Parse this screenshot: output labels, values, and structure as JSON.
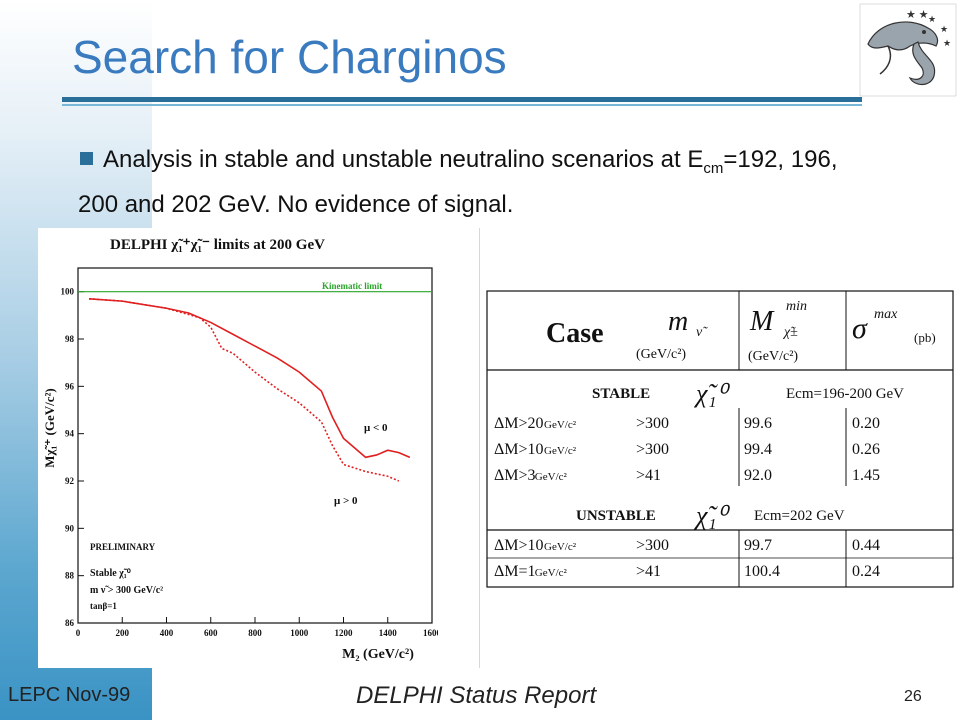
{
  "slide": {
    "title": "Search for Charginos",
    "bullet_main": "Analysis in stable and unstable neutralino scenarios at E",
    "bullet_sub": "cm",
    "bullet_rest": "=192, 196, 200 and 202 GeV. No evidence of signal.",
    "footer_left": "LEPC Nov-99",
    "footer_center": "DELPHI Status Report",
    "page_number": "26",
    "accent_color": "#3a7bbf",
    "logo_icon": "dolphin-logo-icon"
  },
  "chart_data": {
    "type": "line",
    "title": "DELPHI χ̃₁⁺χ̃₁⁻ limits at 200 GeV",
    "xlabel": "M₂ (GeV/c²)",
    "ylabel": "Mχ̃₁⁺ (GeV/c²)",
    "xlim": [
      0,
      1600
    ],
    "ylim": [
      86,
      101
    ],
    "x_ticks": [
      "0",
      "200",
      "400",
      "600",
      "800",
      "1000",
      "1200",
      "1400",
      "1600"
    ],
    "y_ticks": [
      "86",
      "88",
      "90",
      "92",
      "94",
      "96",
      "98",
      "100"
    ],
    "kinematic_limit": {
      "label": "Kinematic limit",
      "y": 100.0
    },
    "series": [
      {
        "name": "μ < 0",
        "style": "solid",
        "x": [
          50,
          200,
          400,
          500,
          600,
          700,
          800,
          900,
          1000,
          1100,
          1150,
          1200,
          1250,
          1300,
          1350,
          1400,
          1450,
          1500
        ],
        "y": [
          99.7,
          99.6,
          99.3,
          99.1,
          98.7,
          98.2,
          97.7,
          97.2,
          96.6,
          95.8,
          94.7,
          93.8,
          93.4,
          93.0,
          93.1,
          93.3,
          93.2,
          93.0
        ]
      },
      {
        "name": "μ > 0",
        "style": "dotted",
        "x": [
          50,
          200,
          400,
          550,
          600,
          650,
          700,
          800,
          900,
          1000,
          1100,
          1150,
          1200,
          1300,
          1400,
          1450
        ],
        "y": [
          99.7,
          99.6,
          99.3,
          98.9,
          98.5,
          97.6,
          97.4,
          96.6,
          95.9,
          95.3,
          94.5,
          93.5,
          92.7,
          92.4,
          92.2,
          92.0
        ]
      }
    ],
    "annotations": {
      "mu_neg": "μ < 0",
      "mu_pos": "μ > 0",
      "prelim": "PRELIMINARY",
      "stable": "Stable χ̃₁⁰",
      "msnu": "m ν̃ > 300 GeV/c²",
      "tanb": "tanβ=1"
    }
  },
  "limits_table": {
    "headers": {
      "case": "Case",
      "m_sneutrino": "m",
      "m_sneutrino_unit": "(GeV/c²)",
      "m_chargino": "M",
      "m_chargino_sup": "min",
      "m_chargino_unit": "(GeV/c²)",
      "sigma": "σ",
      "sigma_sup": "max",
      "sigma_unit": "(pb)"
    },
    "stable": {
      "label": "STABLE",
      "energy": "Ecm=196-200 GeV",
      "rows": [
        {
          "case": "ΔM>20",
          "unit": "GeV/c²",
          "msnu": ">300",
          "mchi": "99.6",
          "sigma": "0.20"
        },
        {
          "case": "ΔM>10",
          "unit": "GeV/c²",
          "msnu": ">300",
          "mchi": "99.4",
          "sigma": "0.26"
        },
        {
          "case": "ΔM>3",
          "unit": "GeV/c²",
          "msnu": ">41",
          "mchi": "92.0",
          "sigma": "1.45"
        }
      ]
    },
    "unstable": {
      "label": "UNSTABLE",
      "energy": "Ecm=202 GeV",
      "rows": [
        {
          "case": "ΔM>10",
          "unit": "GeV/c²",
          "msnu": ">300",
          "mchi": "99.7",
          "sigma": "0.44"
        },
        {
          "case": "ΔM=1",
          "unit": "GeV/c²",
          "msnu": ">41",
          "mchi": "100.4",
          "sigma": "0.24"
        }
      ]
    }
  }
}
